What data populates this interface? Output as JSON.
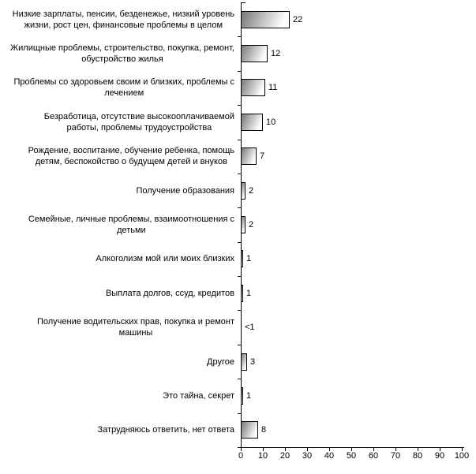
{
  "chart_data": {
    "type": "bar",
    "orientation": "horizontal",
    "title": "",
    "xlabel": "",
    "ylabel": "",
    "xlim": [
      0,
      100
    ],
    "x_ticks": [
      0,
      10,
      20,
      30,
      40,
      50,
      60,
      70,
      80,
      90,
      100
    ],
    "grid": false,
    "legend": false,
    "categories": [
      "Низкие зарплаты, пенсии, безденежье, низкий уровень\nжизни, рост цен, финансовые проблемы в целом",
      "Жилищные проблемы, строительство, покупка, ремонт,\nобустройство жилья",
      "Проблемы со здоровьем своим и близких, проблемы с\nлечением",
      "Безработица, отсутствие высокооплачиваемой\nработы, проблемы трудоустройства",
      "Рождение, воспитание, обучение ребенка, помощь\nдетям, беспокойство о будущем детей и внуков",
      "Получение образования",
      "Семейные, личные проблемы, взаимоотношения с\nдетьми",
      "Алкоголизм мой или моих близких",
      "Выплата долгов, ссуд, кредитов",
      "Получение водительских прав, покупка и ремонт\nмашины",
      "Другое",
      "Это тайна, секрет",
      "Затрудняюсь ответить, нет ответа"
    ],
    "values": [
      22,
      12,
      11,
      10,
      7,
      2,
      2,
      1,
      1,
      0.4,
      3,
      1,
      8
    ],
    "value_labels": [
      "22",
      "12",
      "11",
      "10",
      "7",
      "2",
      "2",
      "1",
      "1",
      "<1",
      "3",
      "1",
      "8"
    ],
    "bar_style": {
      "gradient_start": "#787878",
      "gradient_end": "#ffffff",
      "border_color": "#000000"
    },
    "axis_color": "#000000",
    "background_color": "#ffffff"
  }
}
